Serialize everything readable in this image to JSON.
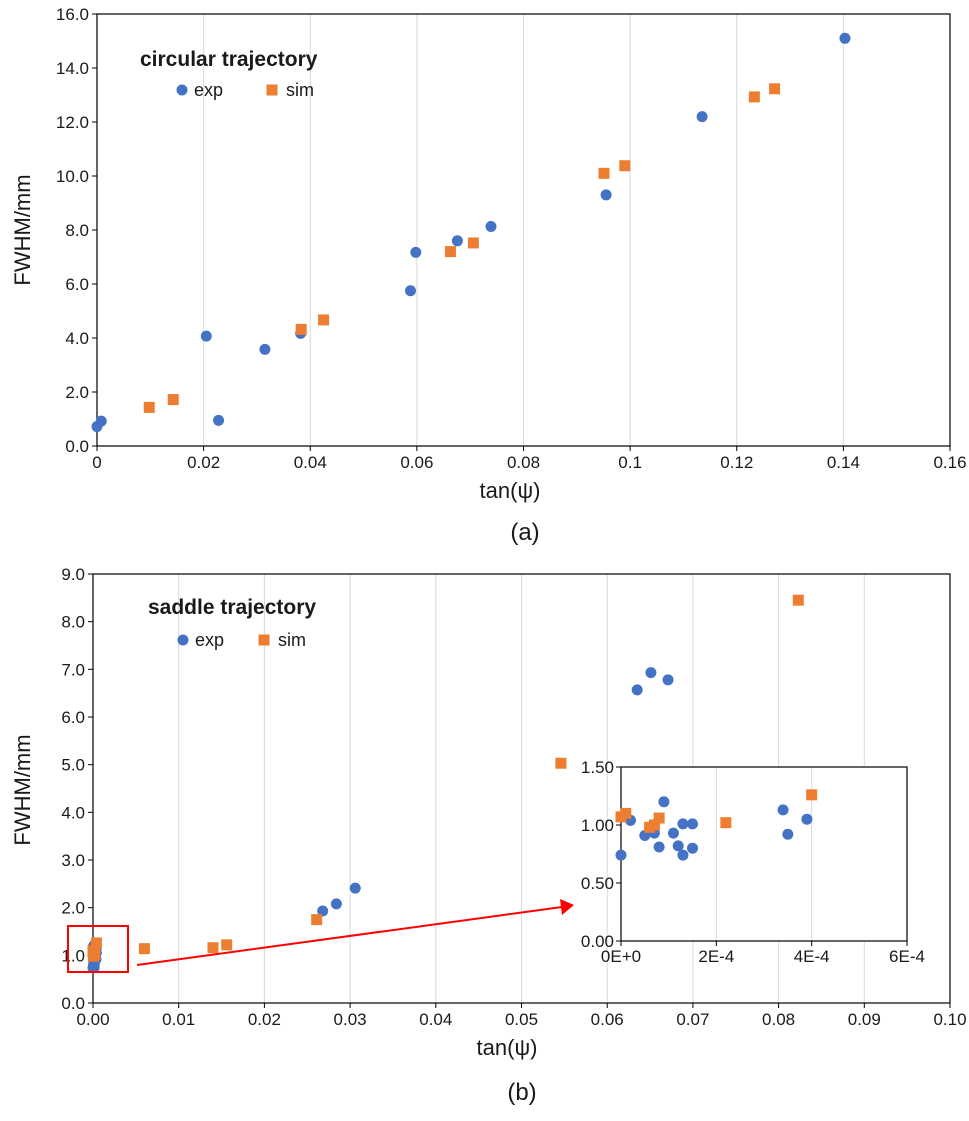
{
  "colors": {
    "exp": "#4472c4",
    "sim": "#ed7d31",
    "grid": "#d9d9d9",
    "axis": "#000000",
    "highlight": "#ff0000"
  },
  "chart_data": [
    {
      "type": "scatter",
      "panel_label": "(a)",
      "title": "circular trajectory",
      "xlabel": "tan(ψ)",
      "ylabel": "FWHM/mm",
      "xlim": [
        0,
        0.16
      ],
      "ylim": [
        0,
        16
      ],
      "x_ticks": [
        "0",
        "0.02",
        "0.04",
        "0.06",
        "0.08",
        "0.1",
        "0.12",
        "0.14",
        "0.16"
      ],
      "y_ticks": [
        "0.0",
        "2.0",
        "4.0",
        "6.0",
        "8.0",
        "10.0",
        "12.0",
        "14.0",
        "16.0"
      ],
      "grid": "vertical",
      "legend": "top-left",
      "series": [
        {
          "name": "exp",
          "marker": "circle",
          "points": [
            [
              0.0,
              0.72
            ],
            [
              0.0008,
              0.92
            ],
            [
              0.0205,
              4.07
            ],
            [
              0.0228,
              0.95
            ],
            [
              0.0315,
              3.58
            ],
            [
              0.0382,
              4.17
            ],
            [
              0.0588,
              5.75
            ],
            [
              0.0598,
              7.17
            ],
            [
              0.0676,
              7.6
            ],
            [
              0.0739,
              8.13
            ],
            [
              0.0955,
              9.3
            ],
            [
              0.1135,
              12.2
            ],
            [
              0.1403,
              15.1
            ]
          ]
        },
        {
          "name": "sim",
          "marker": "square",
          "points": [
            [
              0.0098,
              1.43
            ],
            [
              0.0143,
              1.72
            ],
            [
              0.0383,
              4.32
            ],
            [
              0.0425,
              4.67
            ],
            [
              0.0663,
              7.2
            ],
            [
              0.0706,
              7.52
            ],
            [
              0.0951,
              10.1
            ],
            [
              0.099,
              10.38
            ],
            [
              0.1233,
              12.93
            ],
            [
              0.1271,
              13.23
            ]
          ]
        }
      ]
    },
    {
      "type": "scatter",
      "panel_label": "(b)",
      "title": "saddle trajectory",
      "xlabel": "tan(ψ)",
      "ylabel": "FWHM/mm",
      "xlim": [
        0,
        0.1
      ],
      "ylim": [
        0,
        9
      ],
      "x_ticks": [
        "0.00",
        "0.01",
        "0.02",
        "0.03",
        "0.04",
        "0.05",
        "0.06",
        "0.07",
        "0.08",
        "0.09",
        "0.10"
      ],
      "y_ticks": [
        "0.0",
        "1.0",
        "2.0",
        "3.0",
        "4.0",
        "5.0",
        "6.0",
        "7.0",
        "8.0",
        "9.0"
      ],
      "grid": "vertical",
      "legend": "top-left",
      "series": [
        {
          "name": "exp",
          "marker": "circle",
          "points": [
            [
              0.0,
              0.74
            ],
            [
              2e-05,
              1.04
            ],
            [
              5e-05,
              0.91
            ],
            [
              9e-05,
              1.2
            ],
            [
              7e-05,
              0.93
            ],
            [
              8e-05,
              0.81
            ],
            [
              0.00011,
              0.93
            ],
            [
              0.00012,
              0.82
            ],
            [
              0.00013,
              0.74
            ],
            [
              0.00013,
              1.01
            ],
            [
              0.00015,
              0.8
            ],
            [
              0.00015,
              1.01
            ],
            [
              0.00034,
              1.13
            ],
            [
              0.00035,
              0.92
            ],
            [
              0.00039,
              1.05
            ],
            [
              0.0268,
              1.93
            ],
            [
              0.0284,
              2.08
            ],
            [
              0.0306,
              2.41
            ],
            [
              0.0635,
              6.57
            ],
            [
              0.0651,
              6.93
            ],
            [
              0.0671,
              6.78
            ]
          ]
        },
        {
          "name": "sim",
          "marker": "square",
          "points": [
            [
              0.0,
              1.07
            ],
            [
              1e-05,
              1.1
            ],
            [
              6e-05,
              0.98
            ],
            [
              7e-05,
              1.0
            ],
            [
              8e-05,
              1.06
            ],
            [
              0.00022,
              1.02
            ],
            [
              0.0004,
              1.26
            ],
            [
              0.006,
              1.14
            ],
            [
              0.014,
              1.16
            ],
            [
              0.0156,
              1.22
            ],
            [
              0.0261,
              1.75
            ],
            [
              0.0546,
              5.03
            ],
            [
              0.0823,
              8.45
            ]
          ]
        }
      ]
    },
    {
      "type": "scatter",
      "role": "inset",
      "xlim": [
        0,
        0.0006
      ],
      "ylim": [
        0,
        1.5
      ],
      "x_ticks": [
        "0E+0",
        "2E-4",
        "4E-4",
        "6E-4"
      ],
      "y_ticks": [
        "0.00",
        "0.50",
        "1.00",
        "1.50"
      ],
      "grid": "vertical",
      "series": [
        {
          "name": "exp",
          "marker": "circle",
          "points": [
            [
              0.0,
              0.74
            ],
            [
              2e-05,
              1.04
            ],
            [
              5e-05,
              0.91
            ],
            [
              9e-05,
              1.2
            ],
            [
              7e-05,
              0.93
            ],
            [
              8e-05,
              0.81
            ],
            [
              0.00011,
              0.93
            ],
            [
              0.00012,
              0.82
            ],
            [
              0.00013,
              0.74
            ],
            [
              0.00013,
              1.01
            ],
            [
              0.00015,
              0.8
            ],
            [
              0.00015,
              1.01
            ],
            [
              0.00034,
              1.13
            ],
            [
              0.00035,
              0.92
            ],
            [
              0.00039,
              1.05
            ]
          ]
        },
        {
          "name": "sim",
          "marker": "square",
          "points": [
            [
              0.0,
              1.07
            ],
            [
              1e-05,
              1.1
            ],
            [
              6e-05,
              0.98
            ],
            [
              7e-05,
              1.0
            ],
            [
              8e-05,
              1.06
            ],
            [
              0.00022,
              1.02
            ],
            [
              0.0004,
              1.26
            ]
          ]
        }
      ]
    }
  ]
}
